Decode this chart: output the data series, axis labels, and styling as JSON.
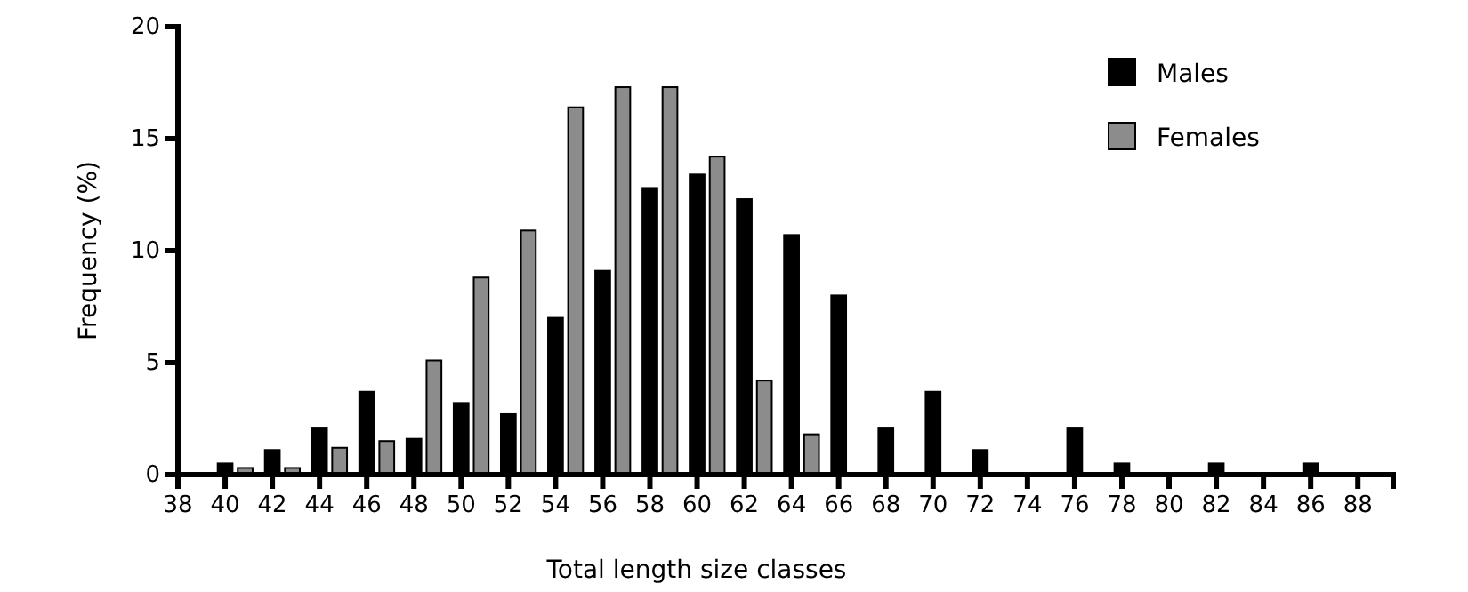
{
  "chart_data": {
    "type": "bar",
    "xlabel": "Total length size classes",
    "ylabel": "Frequency (%)",
    "x": [
      40,
      42,
      44,
      46,
      48,
      50,
      52,
      54,
      56,
      58,
      60,
      62,
      64,
      66,
      68,
      70,
      72,
      74,
      76,
      78,
      80,
      82,
      84,
      86,
      88
    ],
    "series": [
      {
        "name": "Males",
        "color": "#000000",
        "values": [
          0.5,
          1.1,
          2.1,
          3.7,
          1.6,
          3.2,
          2.7,
          7,
          9.1,
          12.8,
          13.4,
          12.3,
          10.7,
          8,
          2.1,
          3.7,
          1.1,
          0,
          2.1,
          0.5,
          0,
          0.5,
          0,
          0.5,
          0
        ]
      },
      {
        "name": "Females",
        "color": "#8c8c8c",
        "values": [
          0.3,
          0.3,
          1.2,
          1.5,
          5.1,
          8.8,
          10.9,
          16.4,
          17.3,
          17.3,
          14.2,
          4.2,
          1.8,
          0,
          0,
          0,
          0,
          0,
          0,
          0,
          0,
          0,
          0,
          0,
          0
        ]
      }
    ],
    "xlim": [
      38,
      89.5
    ],
    "xticks": [
      38,
      40,
      42,
      44,
      46,
      48,
      50,
      52,
      54,
      56,
      58,
      60,
      62,
      64,
      66,
      68,
      70,
      72,
      74,
      76,
      78,
      80,
      82,
      84,
      86,
      88
    ],
    "ylim": [
      0,
      20
    ],
    "yticks": [
      0,
      5,
      10,
      15,
      20
    ],
    "legend": "top right",
    "grid": false
  }
}
